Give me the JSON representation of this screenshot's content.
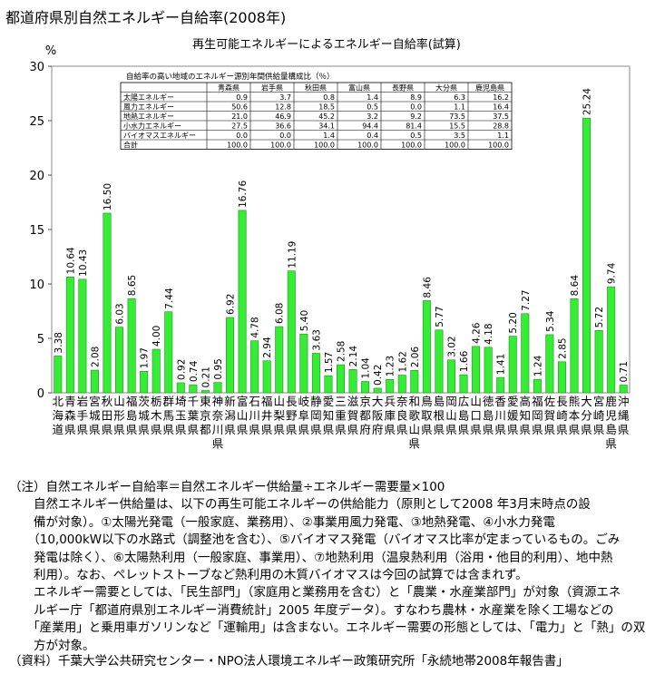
{
  "page_title": "都道府県別自然エネルギー自給率(2008年)",
  "chart_data": {
    "type": "bar",
    "title": "再生可能エネルギーによるエネルギー自給率(試算)",
    "ylabel": "%",
    "ylim": [
      0,
      30
    ],
    "yticks": [
      0,
      5,
      10,
      15,
      20,
      25,
      30
    ],
    "grid": false,
    "bar_color": "#33ee33",
    "categories": [
      "北海道",
      "青森県",
      "岩手県",
      "宮城県",
      "秋田県",
      "山形県",
      "福島県",
      "茨城県",
      "栃木県",
      "群馬県",
      "埼玉県",
      "千葉県",
      "東京都",
      "神奈川県",
      "新潟県",
      "富山県",
      "石川県",
      "福井県",
      "山梨県",
      "長野県",
      "岐阜県",
      "静岡県",
      "愛知県",
      "三重県",
      "滋賀県",
      "京都府",
      "大阪府",
      "兵庫県",
      "奈良県",
      "和歌山県",
      "鳥取県",
      "島根県",
      "岡山県",
      "広島県",
      "山口県",
      "徳島県",
      "香川県",
      "愛媛県",
      "高知県",
      "福岡県",
      "佐賀県",
      "長崎県",
      "熊本県",
      "大分県",
      "宮崎県",
      "鹿児島県",
      "沖縄県"
    ],
    "values": [
      3.38,
      10.64,
      10.43,
      2.08,
      16.5,
      6.03,
      8.65,
      1.97,
      4.0,
      7.44,
      0.92,
      0.74,
      0.21,
      0.95,
      6.92,
      16.76,
      4.78,
      2.94,
      6.08,
      11.19,
      5.4,
      3.63,
      1.57,
      2.58,
      2.14,
      1.04,
      0.42,
      1.23,
      1.62,
      2.06,
      8.46,
      5.77,
      3.02,
      1.66,
      4.26,
      4.18,
      1.41,
      5.2,
      7.27,
      1.24,
      5.34,
      2.85,
      8.64,
      25.24,
      5.72,
      9.74,
      0.71
    ]
  },
  "inset_table": {
    "title": "自給率の高い地域のエネルギー源別年間供給量構成比（％）",
    "columns": [
      "青森県",
      "岩手県",
      "秋田県",
      "富山県",
      "長野県",
      "大分県",
      "鹿児島県"
    ],
    "rows": [
      {
        "label": "太陽エネルギー",
        "values": [
          "0.9",
          "3.7",
          "0.8",
          "1.4",
          "8.9",
          "6.3",
          "16.2"
        ]
      },
      {
        "label": "風力エネルギー",
        "values": [
          "50.6",
          "12.8",
          "18.5",
          "0.5",
          "0.0",
          "1.1",
          "16.4"
        ]
      },
      {
        "label": "地熱エネルギー",
        "values": [
          "21.0",
          "46.9",
          "45.2",
          "3.2",
          "9.2",
          "73.5",
          "37.5"
        ]
      },
      {
        "label": "小水力エネルギー",
        "values": [
          "27.5",
          "36.6",
          "34.1",
          "94.4",
          "81.4",
          "15.5",
          "28.8"
        ]
      },
      {
        "label": "バイオマスエネルギー",
        "values": [
          "0.0",
          "0.0",
          "1.4",
          "0.4",
          "0.5",
          "3.5",
          "1.1"
        ]
      },
      {
        "label": "合計",
        "values": [
          "100.0",
          "100.0",
          "100.0",
          "100.0",
          "100.0",
          "100.0",
          "100.0"
        ]
      }
    ]
  },
  "notes": {
    "lines": [
      "（注）自然エネルギー自給率＝自然エネルギー供給量÷エネルギー需要量×100",
      "　　自然エネルギー供給量は、以下の再生可能エネルギーの供給能力（原則として2008 年3月末時点の設",
      "　　備が対象）。①太陽光発電（一般家庭、業務用）、②事業用風力発電、③地熱発電、④小水力発電",
      "　　（10,000kW以下の水路式（調整池を含む）、⑤バイオマス発電（バイオマス比率が定まっているもの。ごみ",
      "　　発電は除く）、⑥太陽熱利用（一般家庭、事業用）、⑦地熱利用（温泉熱利用（浴用・他目的利用）、地中熱",
      "　　利用）。なお、ペレットストーブなど熱利用の木質バイオマスは今回の試算では含まれず。",
      "　　エネルギー需要としては、「民生部門」（家庭用と業務用を含む）と「農業・水産業部門」が対象（資源エネ",
      "　　ルギー庁「都道府県別エネルギー消費統計」2005 年度データ）。すなわち農林・水産業を除く工場などの",
      "　　「産業用」と乗用車ガソリンなど「運輸用」は含まない。エネルギー需要の形態としては、「電力」と「熱」の双",
      "　　方が対象。"
    ],
    "source": "（資料）千葉大学公共研究センター・NPO法人環境エネルギー政策研究所「永続地帯2008年報告書」"
  }
}
